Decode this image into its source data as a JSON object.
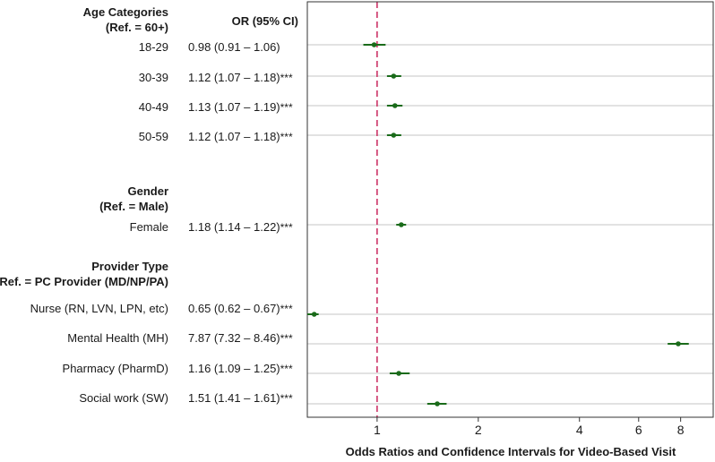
{
  "chart_data": {
    "type": "forest",
    "xlabel": "Odds Ratios and Confidence Intervals for Video-Based Visit",
    "x_scale": "log",
    "xlim": [
      0.62,
      10.0
    ],
    "xticks": [
      1,
      2,
      4,
      6,
      8
    ],
    "reference_line": 1,
    "column_header": "OR (95% CI)",
    "colors": {
      "point": "#1a6b1a",
      "ref_line": "#cc3366",
      "row_line": "#d9d9d9",
      "frame": "#333333"
    },
    "groups": [
      {
        "title": "Age Categories",
        "reference": "(Ref. = 60+)",
        "rows": [
          {
            "label": "18-29",
            "ci_text": "0.98 (0.91 – 1.06)",
            "sig": "",
            "or": 0.98,
            "lo": 0.91,
            "hi": 1.06
          },
          {
            "label": "30-39",
            "ci_text": "1.12 (1.07 – 1.18)",
            "sig": "***",
            "or": 1.12,
            "lo": 1.07,
            "hi": 1.18
          },
          {
            "label": "40-49",
            "ci_text": "1.13 (1.07 – 1.19)",
            "sig": "***",
            "or": 1.13,
            "lo": 1.07,
            "hi": 1.19
          },
          {
            "label": "50-59",
            "ci_text": "1.12 (1.07 – 1.18)",
            "sig": "***",
            "or": 1.12,
            "lo": 1.07,
            "hi": 1.18
          }
        ]
      },
      {
        "title": "Gender",
        "reference": "(Ref. = Male)",
        "rows": [
          {
            "label": "Female",
            "ci_text": "1.18 (1.14 – 1.22)",
            "sig": "***",
            "or": 1.18,
            "lo": 1.14,
            "hi": 1.22
          }
        ]
      },
      {
        "title": "Provider Type",
        "reference": "(Ref. = PC Provider (MD/NP/PA)",
        "rows": [
          {
            "label": "Nurse (RN, LVN, LPN, etc)",
            "ci_text": "0.65 (0.62 – 0.67)",
            "sig": "***",
            "or": 0.65,
            "lo": 0.62,
            "hi": 0.67
          },
          {
            "label": "Mental Health (MH)",
            "ci_text": "7.87 (7.32 – 8.46)",
            "sig": "***",
            "or": 7.87,
            "lo": 7.32,
            "hi": 8.46
          },
          {
            "label": "Pharmacy (PharmD)",
            "ci_text": "1.16 (1.09 – 1.25)",
            "sig": "***",
            "or": 1.16,
            "lo": 1.09,
            "hi": 1.25
          },
          {
            "label": "Social work (SW)",
            "ci_text": "1.51 (1.41 – 1.61)",
            "sig": "***",
            "or": 1.51,
            "lo": 1.41,
            "hi": 1.61
          }
        ]
      }
    ]
  }
}
